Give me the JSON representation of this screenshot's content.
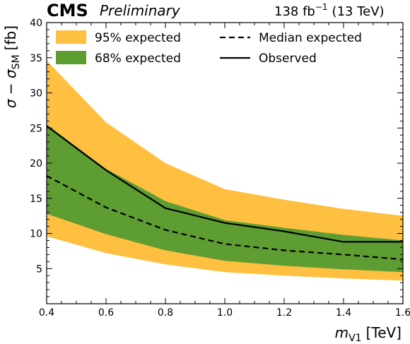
{
  "header": {
    "experiment": "CMS",
    "status": "Preliminary",
    "lumi_value": "138 fb",
    "lumi_exp": "−1",
    "energy": "(13 TeV)"
  },
  "chart_data": {
    "type": "area",
    "xlabel": {
      "var": "m",
      "sub": "V1",
      "unit": "[TeV]"
    },
    "ylabel": {
      "text": "σ − σ",
      "sub": "SM",
      "unit": "[fb]"
    },
    "xlim": [
      0.4,
      1.6
    ],
    "ylim": [
      0,
      40
    ],
    "xticks": [
      0.4,
      0.6,
      0.8,
      1.0,
      1.2,
      1.4,
      1.6
    ],
    "xtick_labels": [
      "0.4",
      "0.6",
      "0.8",
      "1.0",
      "1.2",
      "1.4",
      "1.6"
    ],
    "yticks": [
      5,
      10,
      15,
      20,
      25,
      30,
      35,
      40
    ],
    "ytick_labels": [
      "5",
      "10",
      "15",
      "20",
      "25",
      "30",
      "35",
      "40"
    ],
    "x": [
      0.4,
      0.6,
      0.8,
      1.0,
      1.2,
      1.4,
      1.6
    ],
    "band95": {
      "name": "95% expected",
      "color": "#ffbf40",
      "lower": [
        9.6,
        7.2,
        5.6,
        4.5,
        4.0,
        3.6,
        3.3
      ],
      "upper": [
        34.6,
        25.8,
        20.0,
        16.3,
        14.8,
        13.5,
        12.5
      ]
    },
    "band68": {
      "name": "68% expected",
      "color": "#5e9d32",
      "lower": [
        12.8,
        9.9,
        7.6,
        6.1,
        5.4,
        4.9,
        4.5
      ],
      "upper": [
        25.5,
        19.2,
        14.6,
        11.9,
        10.8,
        9.8,
        9.0
      ]
    },
    "series": [
      {
        "name": "Median expected",
        "style": "dashed",
        "values": [
          18.2,
          13.7,
          10.5,
          8.5,
          7.6,
          7.0,
          6.3
        ]
      },
      {
        "name": "Observed",
        "style": "solid",
        "values": [
          25.3,
          19.0,
          13.6,
          11.5,
          10.3,
          8.8,
          8.8
        ]
      }
    ],
    "legend": "top"
  }
}
